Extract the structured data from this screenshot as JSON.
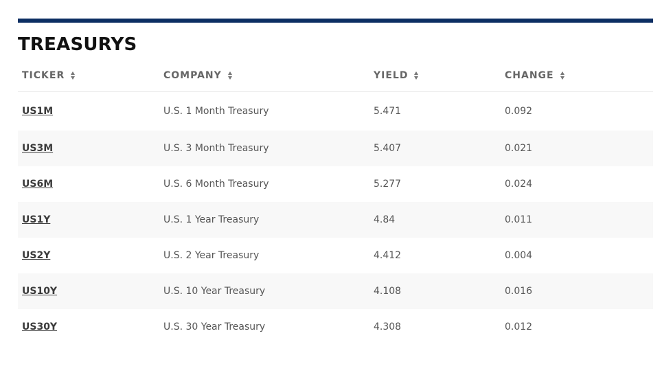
{
  "title": "TREASURYS",
  "columns": [
    {
      "key": "ticker",
      "label": "TICKER"
    },
    {
      "key": "company",
      "label": "COMPANY"
    },
    {
      "key": "yield",
      "label": "YIELD"
    },
    {
      "key": "change",
      "label": "CHANGE"
    }
  ],
  "rows": [
    {
      "ticker": "US1M",
      "company": "U.S. 1 Month Treasury",
      "yield": "5.471",
      "change": "0.092"
    },
    {
      "ticker": "US3M",
      "company": "U.S. 3 Month Treasury",
      "yield": "5.407",
      "change": "0.021"
    },
    {
      "ticker": "US6M",
      "company": "U.S. 6 Month Treasury",
      "yield": "5.277",
      "change": "0.024"
    },
    {
      "ticker": "US1Y",
      "company": "U.S. 1 Year Treasury",
      "yield": "4.84",
      "change": "0.011"
    },
    {
      "ticker": "US2Y",
      "company": "U.S. 2 Year Treasury",
      "yield": "4.412",
      "change": "0.004"
    },
    {
      "ticker": "US10Y",
      "company": "U.S. 10 Year Treasury",
      "yield": "4.108",
      "change": "0.016"
    },
    {
      "ticker": "US30Y",
      "company": "U.S. 30 Year Treasury",
      "yield": "4.308",
      "change": "0.012"
    }
  ]
}
